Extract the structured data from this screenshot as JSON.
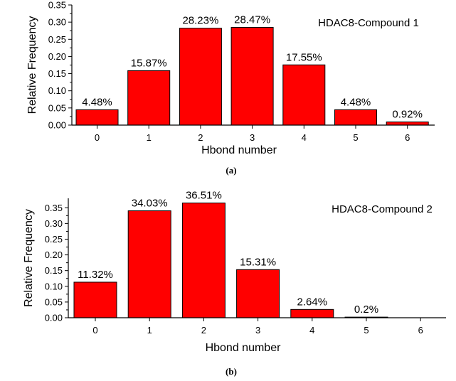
{
  "chart_data": [
    {
      "type": "bar",
      "panel_label": "(a)",
      "title": "HDAC8-Compound 1",
      "xlabel": "Hbond number",
      "ylabel": "Relative Frequency",
      "categories": [
        "0",
        "1",
        "2",
        "3",
        "4",
        "5",
        "6"
      ],
      "values": [
        0.0448,
        0.1587,
        0.2823,
        0.2847,
        0.1755,
        0.0448,
        0.0092
      ],
      "data_labels": [
        "4.48%",
        "15.87%",
        "28.23%",
        "28.47%",
        "17.55%",
        "4.48%",
        "0.92%"
      ],
      "yticks": [
        "0.00",
        "0.05",
        "0.10",
        "0.15",
        "0.20",
        "0.25",
        "0.30",
        "0.35"
      ],
      "ylim": [
        0,
        0.35
      ],
      "bar_color": "#ff0000",
      "grid": false,
      "legend": "none"
    },
    {
      "type": "bar",
      "panel_label": "(b)",
      "title": "HDAC8-Compound 2",
      "xlabel": "Hbond number",
      "ylabel": "Relative Frequency",
      "categories": [
        "0",
        "1",
        "2",
        "3",
        "4",
        "5",
        "6"
      ],
      "values": [
        0.1132,
        0.3403,
        0.3651,
        0.1531,
        0.0264,
        0.002,
        0
      ],
      "data_labels": [
        "11.32%",
        "34.03%",
        "36.51%",
        "15.31%",
        "2.64%",
        "0.2%",
        ""
      ],
      "yticks": [
        "0.00",
        "0.05",
        "0.10",
        "0.15",
        "0.20",
        "0.25",
        "0.30",
        "0.35"
      ],
      "ylim": [
        0,
        0.38
      ],
      "bar_color": "#ff0000",
      "grid": false,
      "legend": "none"
    }
  ]
}
